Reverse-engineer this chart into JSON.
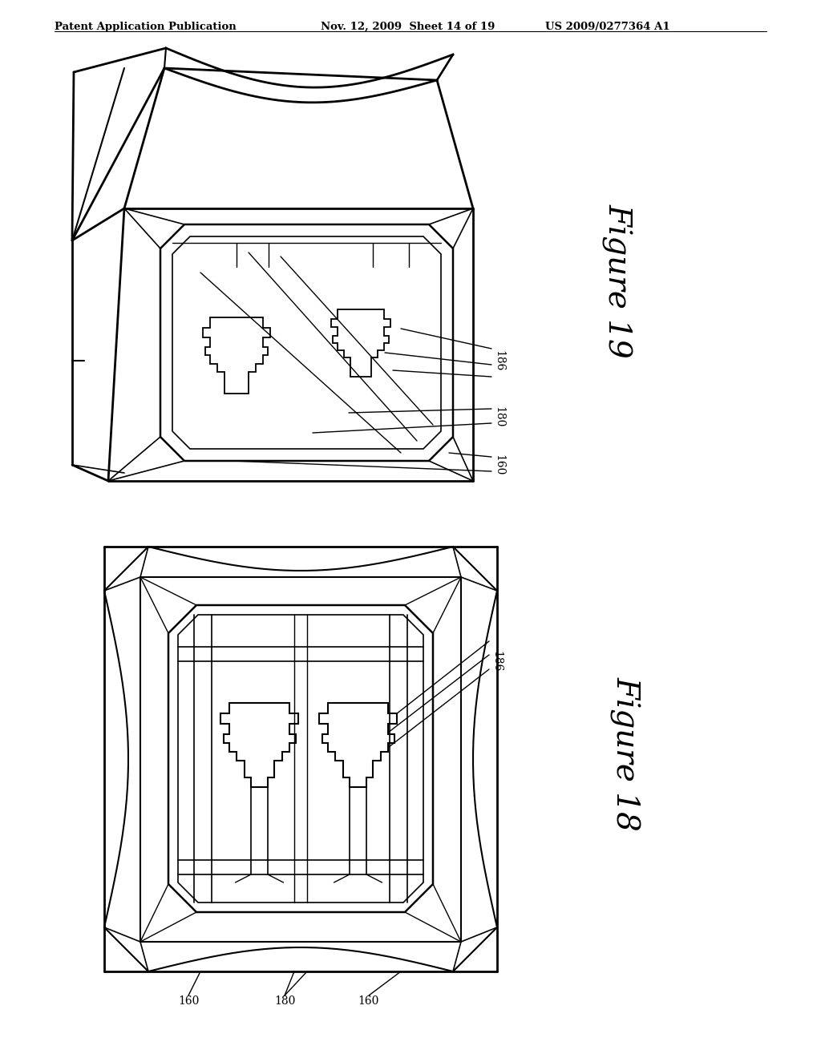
{
  "background_color": "#ffffff",
  "header_left": "Patent Application Publication",
  "header_center": "Nov. 12, 2009  Sheet 14 of 19",
  "header_right": "US 2009/0277364 A1",
  "fig19_label": "Figure 19",
  "fig18_label": "Figure 18",
  "label_160_fig19": "160",
  "label_180_fig19": "180",
  "label_186_fig19": "186",
  "label_186_fig18": "186",
  "label_160_fig18_L": "160",
  "label_180_fig18": "180",
  "label_160_fig18_R": "160",
  "line_color": "#000000",
  "text_color": "#000000"
}
